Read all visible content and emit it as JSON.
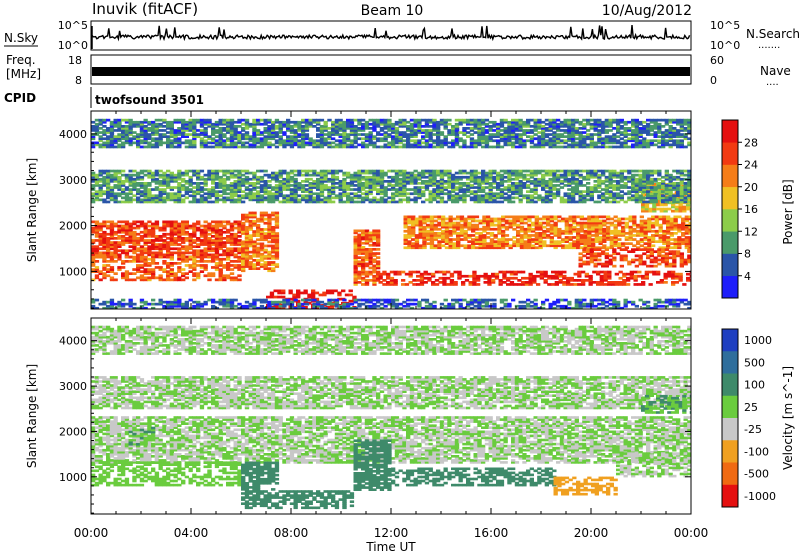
{
  "header": {
    "station": "Inuvik (fitACF)",
    "beam": "Beam 10",
    "date": "10/Aug/2012"
  },
  "noise_panel": {
    "left_label": "N.Sky",
    "right_label": "N.Search",
    "left_ticks": [
      "10^5",
      "10^0"
    ],
    "right_ticks": [
      "10^5",
      "10^0"
    ],
    "right_key": "......."
  },
  "freq_panel": {
    "left_label_1": "Freq.",
    "left_label_2": "[MHz]",
    "right_label": "Nave",
    "left_ticks": [
      "18",
      "8"
    ],
    "right_ticks": [
      "60",
      "0"
    ],
    "right_key": "....",
    "value": "10"
  },
  "cpid": {
    "label": "CPID",
    "value": "twofsound 3501"
  },
  "x_axis": {
    "title": "Time UT",
    "ticks": [
      "00:00",
      "04:00",
      "08:00",
      "12:00",
      "16:00",
      "20:00",
      "00:00"
    ]
  },
  "y_axis": {
    "title": "Slant Range [km]",
    "ticks": [
      "1000",
      "2000",
      "3000",
      "4000"
    ]
  },
  "chart_data": [
    {
      "type": "heatmap",
      "title": "",
      "xlabel": "Time UT",
      "ylabel": "Slant Range [km]",
      "colorbar_label": "Power [dB]",
      "xlim": [
        0,
        24
      ],
      "ylim": [
        180,
        4500
      ],
      "colorbar_ticks": [
        "4",
        "8",
        "12",
        "16",
        "20",
        "24",
        "28"
      ],
      "colorbar_colors": [
        "#1e1efa",
        "#2a55a8",
        "#4a9a6a",
        "#8ccc4a",
        "#f0c024",
        "#f57d18",
        "#f23a12",
        "#e51010"
      ],
      "regions": [
        {
          "x": [
            0.0,
            6.0
          ],
          "y": [
            1300,
            2100
          ],
          "level": 26
        },
        {
          "x": [
            0.0,
            6.0
          ],
          "y": [
            800,
            1300
          ],
          "level": 24
        },
        {
          "x": [
            6.0,
            7.5
          ],
          "y": [
            1000,
            2300
          ],
          "level": 22
        },
        {
          "x": [
            7.0,
            10.5
          ],
          "y": [
            200,
            600
          ],
          "level": 30
        },
        {
          "x": [
            10.5,
            11.5
          ],
          "y": [
            700,
            1900
          ],
          "level": 24
        },
        {
          "x": [
            11.5,
            24.0
          ],
          "y": [
            700,
            1000
          ],
          "level": 28
        },
        {
          "x": [
            12.5,
            24.0
          ],
          "y": [
            1500,
            2200
          ],
          "level": 22
        },
        {
          "x": [
            19.5,
            24.0
          ],
          "y": [
            1100,
            1500
          ],
          "level": 26
        },
        {
          "x": [
            22.0,
            24.0
          ],
          "y": [
            2300,
            2900
          ],
          "level": 18
        },
        {
          "x": [
            0.0,
            24.0
          ],
          "y": [
            2500,
            3200
          ],
          "level": 10
        },
        {
          "x": [
            0.0,
            24.0
          ],
          "y": [
            3700,
            4300
          ],
          "level": 8
        },
        {
          "x": [
            0.0,
            24.0
          ],
          "y": [
            180,
            400
          ],
          "level": 6
        }
      ]
    },
    {
      "type": "heatmap",
      "title": "",
      "xlabel": "Time UT",
      "ylabel": "Slant Range [km]",
      "colorbar_label": "Velocity [m s^-1]",
      "xlim": [
        0,
        24
      ],
      "ylim": [
        180,
        4500
      ],
      "colorbar_ticks": [
        "1000",
        "500",
        "100",
        "25",
        "-25",
        "-100",
        "-500",
        "-1000"
      ],
      "colorbar_colors": [
        "#1f3fc0",
        "#2f6e9c",
        "#3e8a6a",
        "#6acc3e",
        "#c8c8c8",
        "#f0a020",
        "#f06a12",
        "#e51010"
      ],
      "regions": [
        {
          "x": [
            0.0,
            24.0
          ],
          "y": [
            1300,
            2300
          ],
          "level": 0
        },
        {
          "x": [
            1.5,
            2.5
          ],
          "y": [
            1700,
            2100
          ],
          "level": 60
        },
        {
          "x": [
            0.0,
            6.0
          ],
          "y": [
            800,
            1300
          ],
          "level": 40
        },
        {
          "x": [
            6.0,
            7.5
          ],
          "y": [
            300,
            1300
          ],
          "level": 150
        },
        {
          "x": [
            7.5,
            10.5
          ],
          "y": [
            300,
            700
          ],
          "level": 150
        },
        {
          "x": [
            10.5,
            12.0
          ],
          "y": [
            700,
            1800
          ],
          "level": 150
        },
        {
          "x": [
            12.0,
            18.5
          ],
          "y": [
            800,
            1200
          ],
          "level": 150
        },
        {
          "x": [
            18.5,
            21.0
          ],
          "y": [
            600,
            1000
          ],
          "level": -200
        },
        {
          "x": [
            21.0,
            24.0
          ],
          "y": [
            1000,
            1500
          ],
          "level": 0
        },
        {
          "x": [
            0.0,
            24.0
          ],
          "y": [
            2500,
            3200
          ],
          "level": 0
        },
        {
          "x": [
            22.0,
            24.0
          ],
          "y": [
            2400,
            2800
          ],
          "level": 60
        },
        {
          "x": [
            0.0,
            24.0
          ],
          "y": [
            3700,
            4300
          ],
          "level": 0
        }
      ]
    }
  ]
}
